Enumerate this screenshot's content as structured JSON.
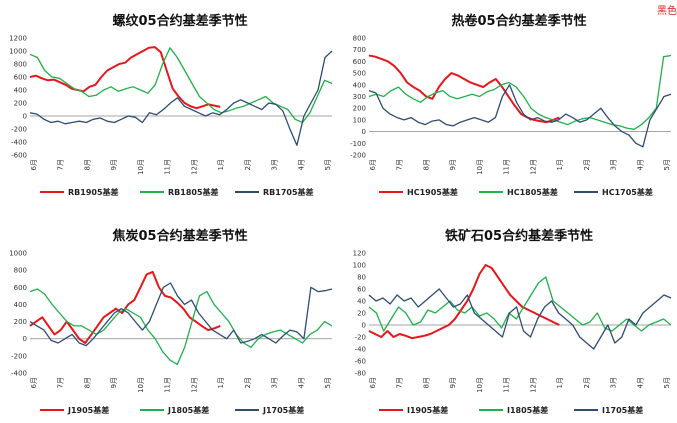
{
  "corner_label": "黑色",
  "colors": {
    "s2019": "#e8161b",
    "s2018": "#1fb14a",
    "s2017": "#2f4d74"
  },
  "months": [
    "6月",
    "7月",
    "8月",
    "9月",
    "10月",
    "11月",
    "12月",
    "1月",
    "2月",
    "3月",
    "4月",
    "5月"
  ],
  "chart_data": [
    {
      "type": "line",
      "title": "螺纹05合约基差季节性",
      "ylim": [
        -600,
        1200
      ],
      "yticks": [
        -600,
        -400,
        -200,
        0,
        200,
        400,
        600,
        800,
        1000,
        1200
      ],
      "legend_placement": "bottom",
      "series": [
        {
          "name": "RB1905基差",
          "color": "#e8161b",
          "end": 0.63,
          "values": [
            600,
            620,
            580,
            550,
            560,
            520,
            480,
            420,
            400,
            380,
            450,
            480,
            600,
            700,
            750,
            800,
            820,
            900,
            950,
            1000,
            1050,
            1060,
            980,
            700,
            420,
            300,
            200,
            150,
            120,
            150,
            180,
            160,
            140
          ]
        },
        {
          "name": "RB1805基差",
          "color": "#1fb14a",
          "end": 1.0,
          "values": [
            950,
            900,
            700,
            600,
            580,
            500,
            420,
            380,
            300,
            320,
            400,
            450,
            380,
            420,
            450,
            400,
            350,
            480,
            800,
            1050,
            900,
            700,
            500,
            300,
            200,
            100,
            50,
            80,
            120,
            150,
            200,
            250,
            300,
            200,
            150,
            100,
            -50,
            -100,
            50,
            300,
            550,
            500
          ]
        },
        {
          "name": "RB1705基差",
          "color": "#2f4d74",
          "end": 1.0,
          "values": [
            50,
            30,
            -50,
            -100,
            -80,
            -120,
            -100,
            -80,
            -100,
            -50,
            -30,
            -80,
            -100,
            -50,
            0,
            -20,
            -100,
            50,
            20,
            100,
            200,
            280,
            150,
            100,
            50,
            0,
            50,
            20,
            100,
            200,
            250,
            200,
            150,
            100,
            200,
            180,
            80,
            -200,
            -450,
            0,
            200,
            400,
            900,
            1000
          ]
        }
      ]
    },
    {
      "type": "line",
      "title": "热卷05合约基差季节性",
      "ylim": [
        -200,
        800
      ],
      "yticks": [
        -200,
        -100,
        0,
        100,
        200,
        300,
        400,
        500,
        600,
        700,
        800
      ],
      "legend_placement": "bottom",
      "series": [
        {
          "name": "HC1905基差",
          "color": "#e8161b",
          "end": 0.63,
          "values": [
            650,
            640,
            620,
            600,
            560,
            500,
            420,
            380,
            350,
            300,
            280,
            380,
            450,
            500,
            480,
            450,
            420,
            400,
            380,
            420,
            450,
            380,
            300,
            220,
            150,
            120,
            100,
            90,
            80,
            100,
            120
          ]
        },
        {
          "name": "HC1805基差",
          "color": "#1fb14a",
          "end": 1.0,
          "values": [
            300,
            320,
            300,
            350,
            380,
            320,
            280,
            250,
            300,
            330,
            350,
            300,
            280,
            300,
            320,
            300,
            340,
            360,
            400,
            420,
            380,
            300,
            200,
            150,
            120,
            100,
            80,
            60,
            90,
            110,
            120,
            100,
            80,
            60,
            50,
            30,
            20,
            60,
            120,
            200,
            640,
            650
          ]
        },
        {
          "name": "HC1705基差",
          "color": "#2f4d74",
          "end": 1.0,
          "values": [
            350,
            330,
            200,
            150,
            120,
            100,
            120,
            80,
            60,
            90,
            100,
            60,
            50,
            80,
            100,
            120,
            100,
            80,
            120,
            300,
            400,
            250,
            150,
            100,
            120,
            90,
            80,
            100,
            150,
            120,
            80,
            100,
            150,
            200,
            120,
            50,
            0,
            -30,
            -100,
            -130,
            100,
            200,
            300,
            320
          ]
        }
      ]
    },
    {
      "type": "line",
      "title": "焦炭05合约基差季节性",
      "ylim": [
        -400,
        1000
      ],
      "yticks": [
        -400,
        -200,
        0,
        200,
        400,
        600,
        800,
        1000
      ],
      "legend_placement": "bottom",
      "series": [
        {
          "name": "J1905基差",
          "color": "#e8161b",
          "end": 0.63,
          "values": [
            150,
            200,
            250,
            150,
            50,
            100,
            200,
            100,
            0,
            -50,
            50,
            150,
            250,
            300,
            350,
            300,
            400,
            450,
            600,
            750,
            780,
            600,
            500,
            480,
            420,
            350,
            250,
            200,
            150,
            100,
            120,
            150
          ]
        },
        {
          "name": "J1805基差",
          "color": "#1fb14a",
          "end": 1.0,
          "values": [
            550,
            580,
            520,
            400,
            300,
            200,
            150,
            150,
            100,
            50,
            100,
            200,
            300,
            350,
            300,
            250,
            100,
            0,
            -150,
            -250,
            -300,
            -100,
            200,
            500,
            550,
            400,
            300,
            200,
            50,
            -50,
            -100,
            0,
            50,
            80,
            100,
            50,
            0,
            -50,
            50,
            100,
            200,
            150
          ]
        },
        {
          "name": "J1705基差",
          "color": "#2f4d74",
          "end": 1.0,
          "values": [
            200,
            150,
            100,
            -20,
            -50,
            0,
            50,
            -50,
            -80,
            0,
            100,
            200,
            300,
            350,
            300,
            200,
            100,
            200,
            400,
            600,
            650,
            500,
            400,
            450,
            300,
            200,
            100,
            50,
            0,
            100,
            -50,
            -30,
            0,
            50,
            0,
            -50,
            30,
            100,
            80,
            0,
            600,
            550,
            560,
            580
          ]
        }
      ]
    },
    {
      "type": "line",
      "title": "铁矿石05合约基差季节性",
      "ylim": [
        -80,
        120
      ],
      "yticks": [
        -80,
        -60,
        -40,
        -20,
        0,
        20,
        40,
        60,
        80,
        100,
        120
      ],
      "legend_placement": "bottom",
      "series": [
        {
          "name": "I1905基差",
          "color": "#e8161b",
          "end": 0.63,
          "values": [
            -10,
            -15,
            -20,
            -10,
            -20,
            -15,
            -18,
            -22,
            -20,
            -18,
            -15,
            -10,
            -5,
            0,
            10,
            25,
            40,
            60,
            85,
            100,
            95,
            80,
            65,
            50,
            40,
            30,
            25,
            20,
            15,
            10,
            5,
            0
          ]
        },
        {
          "name": "I1805基差",
          "color": "#1fb14a",
          "end": 1.0,
          "values": [
            30,
            20,
            -10,
            10,
            30,
            20,
            0,
            5,
            25,
            20,
            30,
            40,
            25,
            20,
            30,
            15,
            20,
            10,
            -5,
            20,
            10,
            30,
            50,
            70,
            80,
            40,
            30,
            20,
            10,
            0,
            5,
            20,
            -5,
            -10,
            0,
            10,
            0,
            -10,
            0,
            5,
            10,
            0
          ]
        },
        {
          "name": "I1705基差",
          "color": "#2f4d74",
          "end": 1.0,
          "values": [
            50,
            40,
            45,
            35,
            50,
            40,
            45,
            30,
            40,
            50,
            60,
            45,
            30,
            35,
            50,
            20,
            10,
            0,
            -10,
            -20,
            20,
            30,
            -10,
            -20,
            10,
            30,
            40,
            20,
            10,
            0,
            -20,
            -30,
            -40,
            -20,
            0,
            -30,
            -20,
            10,
            0,
            20,
            30,
            40,
            50,
            45
          ]
        }
      ]
    }
  ]
}
